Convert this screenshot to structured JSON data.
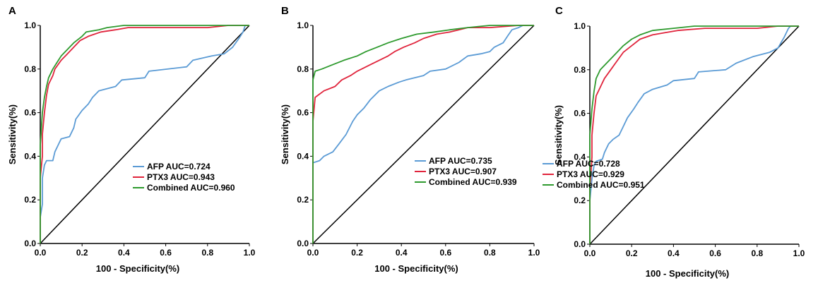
{
  "colors": {
    "afp": "#5b9bd5",
    "ptx3": "#e0243c",
    "combined": "#2e9a2e",
    "reference": "#000000",
    "axis": "#000000"
  },
  "chart_data": [
    {
      "type": "line",
      "panel": "A",
      "xlabel": "100 - Specificity(%)",
      "ylabel": "Sensitivity(%)",
      "xlim": [
        0,
        1
      ],
      "ylim": [
        0,
        1
      ],
      "xticks": [
        "0.0",
        "0.2",
        "0.4",
        "0.6",
        "0.8",
        "1.0"
      ],
      "yticks": [
        "0.0",
        "0.2",
        "0.4",
        "0.6",
        "0.8",
        "1.0"
      ],
      "grid": false,
      "legend_position": "bottom-right",
      "reference_line": [
        [
          0,
          0
        ],
        [
          1,
          1
        ]
      ],
      "series": [
        {
          "name": "AFP AUC=0.724",
          "color_key": "afp",
          "points": [
            [
              0,
              0
            ],
            [
              0,
              0.12
            ],
            [
              0.01,
              0.18
            ],
            [
              0.01,
              0.3
            ],
            [
              0.02,
              0.36
            ],
            [
              0.03,
              0.38
            ],
            [
              0.06,
              0.38
            ],
            [
              0.07,
              0.42
            ],
            [
              0.09,
              0.46
            ],
            [
              0.1,
              0.48
            ],
            [
              0.14,
              0.49
            ],
            [
              0.16,
              0.53
            ],
            [
              0.17,
              0.57
            ],
            [
              0.2,
              0.61
            ],
            [
              0.23,
              0.64
            ],
            [
              0.25,
              0.67
            ],
            [
              0.28,
              0.7
            ],
            [
              0.36,
              0.72
            ],
            [
              0.39,
              0.75
            ],
            [
              0.5,
              0.76
            ],
            [
              0.52,
              0.79
            ],
            [
              0.7,
              0.81
            ],
            [
              0.73,
              0.84
            ],
            [
              0.82,
              0.86
            ],
            [
              0.88,
              0.87
            ],
            [
              0.92,
              0.9
            ],
            [
              0.95,
              0.94
            ],
            [
              0.97,
              0.97
            ],
            [
              0.98,
              1
            ],
            [
              1,
              1
            ]
          ]
        },
        {
          "name": "PTX3 AUC=0.943",
          "color_key": "ptx3",
          "points": [
            [
              0,
              0
            ],
            [
              0,
              0.3
            ],
            [
              0.01,
              0.4
            ],
            [
              0.01,
              0.5
            ],
            [
              0.02,
              0.6
            ],
            [
              0.03,
              0.68
            ],
            [
              0.04,
              0.73
            ],
            [
              0.06,
              0.77
            ],
            [
              0.07,
              0.8
            ],
            [
              0.1,
              0.84
            ],
            [
              0.13,
              0.87
            ],
            [
              0.16,
              0.9
            ],
            [
              0.19,
              0.93
            ],
            [
              0.23,
              0.95
            ],
            [
              0.29,
              0.97
            ],
            [
              0.36,
              0.98
            ],
            [
              0.42,
              0.99
            ],
            [
              0.55,
              0.99
            ],
            [
              0.8,
              0.99
            ],
            [
              0.9,
              1
            ],
            [
              1,
              1
            ]
          ]
        },
        {
          "name": "Combined AUC=0.960",
          "color_key": "combined",
          "points": [
            [
              0,
              0
            ],
            [
              0,
              0.45
            ],
            [
              0.01,
              0.6
            ],
            [
              0.02,
              0.67
            ],
            [
              0.03,
              0.72
            ],
            [
              0.04,
              0.76
            ],
            [
              0.06,
              0.8
            ],
            [
              0.08,
              0.83
            ],
            [
              0.1,
              0.86
            ],
            [
              0.13,
              0.89
            ],
            [
              0.16,
              0.92
            ],
            [
              0.2,
              0.95
            ],
            [
              0.22,
              0.97
            ],
            [
              0.28,
              0.98
            ],
            [
              0.32,
              0.99
            ],
            [
              0.4,
              1
            ],
            [
              1,
              1
            ]
          ]
        }
      ]
    },
    {
      "type": "line",
      "panel": "B",
      "xlabel": "100 - Specificity(%)",
      "ylabel": "Sensitivity(%)",
      "xlim": [
        0,
        1
      ],
      "ylim": [
        0,
        1
      ],
      "xticks": [
        "0.0",
        "0.2",
        "0.4",
        "0.6",
        "0.8",
        "1.0"
      ],
      "yticks": [
        "0.0",
        "0.2",
        "0.4",
        "0.6",
        "0.8",
        "1.0"
      ],
      "grid": false,
      "legend_position": "bottom-right",
      "reference_line": [
        [
          0,
          0
        ],
        [
          1,
          1
        ]
      ],
      "series": [
        {
          "name": "AFP AUC=0.735",
          "color_key": "afp",
          "points": [
            [
              0,
              0
            ],
            [
              0,
              0.37
            ],
            [
              0.03,
              0.38
            ],
            [
              0.05,
              0.4
            ],
            [
              0.09,
              0.42
            ],
            [
              0.12,
              0.46
            ],
            [
              0.15,
              0.5
            ],
            [
              0.18,
              0.56
            ],
            [
              0.2,
              0.59
            ],
            [
              0.23,
              0.62
            ],
            [
              0.26,
              0.66
            ],
            [
              0.3,
              0.7
            ],
            [
              0.34,
              0.72
            ],
            [
              0.39,
              0.74
            ],
            [
              0.42,
              0.75
            ],
            [
              0.5,
              0.77
            ],
            [
              0.53,
              0.79
            ],
            [
              0.6,
              0.8
            ],
            [
              0.66,
              0.83
            ],
            [
              0.7,
              0.86
            ],
            [
              0.76,
              0.87
            ],
            [
              0.8,
              0.88
            ],
            [
              0.82,
              0.9
            ],
            [
              0.86,
              0.92
            ],
            [
              0.88,
              0.95
            ],
            [
              0.9,
              0.98
            ],
            [
              0.93,
              0.99
            ],
            [
              0.95,
              1
            ],
            [
              1,
              1
            ]
          ]
        },
        {
          "name": "PTX3 AUC=0.907",
          "color_key": "ptx3",
          "points": [
            [
              0,
              0
            ],
            [
              0,
              0.56
            ],
            [
              0.01,
              0.67
            ],
            [
              0.05,
              0.7
            ],
            [
              0.1,
              0.72
            ],
            [
              0.13,
              0.75
            ],
            [
              0.17,
              0.77
            ],
            [
              0.2,
              0.79
            ],
            [
              0.22,
              0.8
            ],
            [
              0.26,
              0.82
            ],
            [
              0.3,
              0.84
            ],
            [
              0.34,
              0.86
            ],
            [
              0.37,
              0.88
            ],
            [
              0.41,
              0.9
            ],
            [
              0.46,
              0.92
            ],
            [
              0.5,
              0.94
            ],
            [
              0.56,
              0.96
            ],
            [
              0.62,
              0.97
            ],
            [
              0.66,
              0.98
            ],
            [
              0.7,
              0.99
            ],
            [
              0.8,
              0.99
            ],
            [
              0.93,
              1
            ],
            [
              1,
              1
            ]
          ]
        },
        {
          "name": "Combined AUC=0.939",
          "color_key": "combined",
          "points": [
            [
              0,
              0
            ],
            [
              0,
              0.75
            ],
            [
              0.01,
              0.79
            ],
            [
              0.04,
              0.8
            ],
            [
              0.09,
              0.82
            ],
            [
              0.14,
              0.84
            ],
            [
              0.2,
              0.86
            ],
            [
              0.24,
              0.88
            ],
            [
              0.29,
              0.9
            ],
            [
              0.34,
              0.92
            ],
            [
              0.4,
              0.94
            ],
            [
              0.47,
              0.96
            ],
            [
              0.55,
              0.97
            ],
            [
              0.62,
              0.98
            ],
            [
              0.7,
              0.99
            ],
            [
              0.8,
              1
            ],
            [
              1,
              1
            ]
          ]
        }
      ]
    },
    {
      "type": "line",
      "panel": "C",
      "xlabel": "100 - Specificity(%)",
      "ylabel": "Sensitivity(%)",
      "xlim": [
        0,
        1
      ],
      "ylim": [
        0,
        1
      ],
      "xticks": [
        "0.0",
        "0.2",
        "0.4",
        "0.6",
        "0.8",
        "1.0"
      ],
      "yticks": [
        "0.0",
        "0.2",
        "0.4",
        "0.6",
        "0.8",
        "1.0"
      ],
      "grid": false,
      "legend_position": "bottom-right",
      "reference_line": [
        [
          0,
          0
        ],
        [
          1,
          1
        ]
      ],
      "series": [
        {
          "name": "AFP AUC=0.728",
          "color_key": "afp",
          "points": [
            [
              0,
              0
            ],
            [
              0,
              0.2
            ],
            [
              0.01,
              0.3
            ],
            [
              0.02,
              0.36
            ],
            [
              0.03,
              0.38
            ],
            [
              0.06,
              0.39
            ],
            [
              0.07,
              0.42
            ],
            [
              0.09,
              0.46
            ],
            [
              0.11,
              0.48
            ],
            [
              0.14,
              0.5
            ],
            [
              0.16,
              0.54
            ],
            [
              0.18,
              0.58
            ],
            [
              0.21,
              0.62
            ],
            [
              0.23,
              0.65
            ],
            [
              0.26,
              0.69
            ],
            [
              0.3,
              0.71
            ],
            [
              0.37,
              0.73
            ],
            [
              0.4,
              0.75
            ],
            [
              0.5,
              0.76
            ],
            [
              0.52,
              0.79
            ],
            [
              0.65,
              0.8
            ],
            [
              0.7,
              0.83
            ],
            [
              0.78,
              0.86
            ],
            [
              0.86,
              0.88
            ],
            [
              0.9,
              0.9
            ],
            [
              0.93,
              0.95
            ],
            [
              0.95,
              0.99
            ],
            [
              0.96,
              1
            ],
            [
              1,
              1
            ]
          ]
        },
        {
          "name": "PTX3 AUC=0.929",
          "color_key": "ptx3",
          "points": [
            [
              0,
              0
            ],
            [
              0,
              0.25
            ],
            [
              0.01,
              0.4
            ],
            [
              0.01,
              0.5
            ],
            [
              0.02,
              0.6
            ],
            [
              0.03,
              0.68
            ],
            [
              0.05,
              0.72
            ],
            [
              0.07,
              0.76
            ],
            [
              0.1,
              0.8
            ],
            [
              0.13,
              0.84
            ],
            [
              0.16,
              0.88
            ],
            [
              0.2,
              0.91
            ],
            [
              0.24,
              0.94
            ],
            [
              0.3,
              0.96
            ],
            [
              0.36,
              0.97
            ],
            [
              0.42,
              0.98
            ],
            [
              0.55,
              0.99
            ],
            [
              0.8,
              0.99
            ],
            [
              0.9,
              1
            ],
            [
              1,
              1
            ]
          ]
        },
        {
          "name": "Combined AUC=0.951",
          "color_key": "combined",
          "points": [
            [
              0,
              0
            ],
            [
              0,
              0.5
            ],
            [
              0.01,
              0.62
            ],
            [
              0.02,
              0.7
            ],
            [
              0.03,
              0.76
            ],
            [
              0.05,
              0.8
            ],
            [
              0.07,
              0.82
            ],
            [
              0.1,
              0.85
            ],
            [
              0.13,
              0.88
            ],
            [
              0.16,
              0.91
            ],
            [
              0.2,
              0.94
            ],
            [
              0.24,
              0.96
            ],
            [
              0.3,
              0.98
            ],
            [
              0.4,
              0.99
            ],
            [
              0.5,
              1
            ],
            [
              1,
              1
            ]
          ]
        }
      ]
    }
  ]
}
